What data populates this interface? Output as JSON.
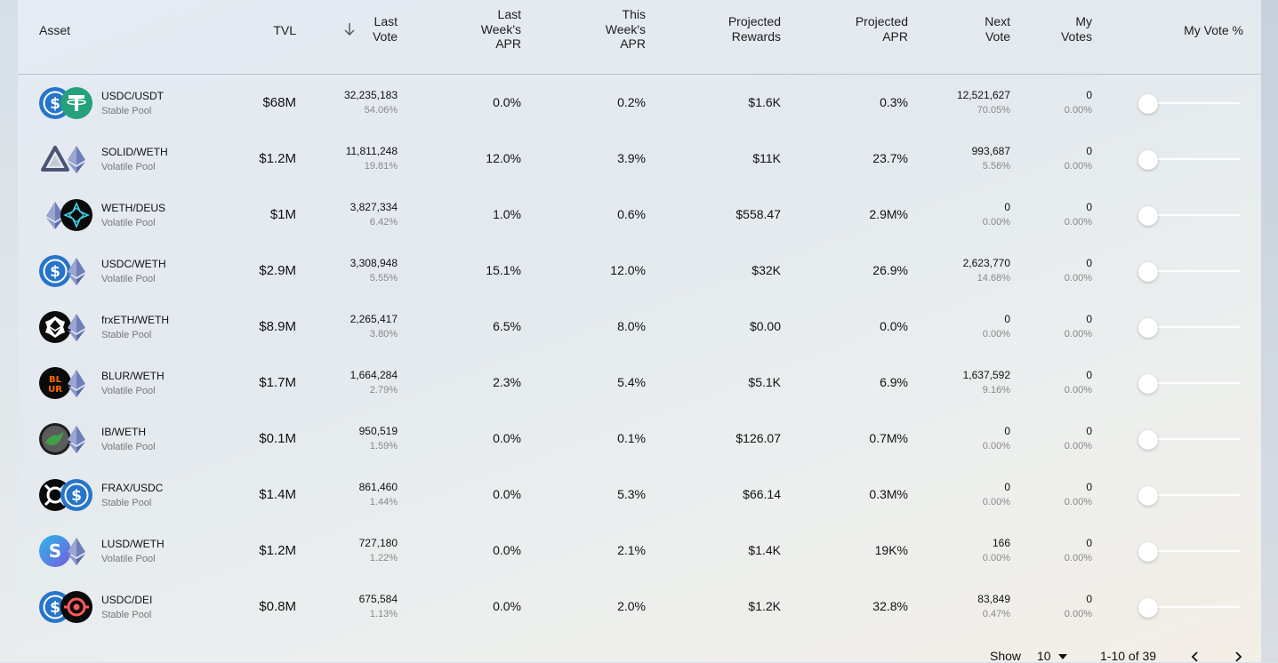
{
  "header": {
    "asset": "Asset",
    "tvl": "TVL",
    "last_vote": [
      "Last",
      "Vote"
    ],
    "last_week_apr": [
      "Last",
      "Week's",
      "APR"
    ],
    "this_week_apr": [
      "This",
      "Week's",
      "APR"
    ],
    "projected_rewards": [
      "Projected",
      "Rewards"
    ],
    "projected_apr": [
      "Projected",
      "APR"
    ],
    "next_vote": [
      "Next",
      "Vote"
    ],
    "my_votes": [
      "My",
      "Votes"
    ],
    "my_vote_pct": "My Vote %"
  },
  "rows": [
    {
      "name": "USDC/USDT",
      "type": "Stable Pool",
      "tvl": "$68M",
      "last_vote": "32,235,183",
      "last_vote_pct": "54.06%",
      "last_week_apr": "0.0%",
      "this_week_apr": "0.2%",
      "projected_rewards": "$1.6K",
      "projected_apr": "0.3%",
      "next_vote": "12,521,627",
      "next_vote_pct": "70.05%",
      "my_votes": "0",
      "my_votes_pct": "0.00%",
      "icons": [
        "usdc-icon",
        "usdt-icon"
      ],
      "slider": 0
    },
    {
      "name": "SOLID/WETH",
      "type": "Volatile Pool",
      "tvl": "$1.2M",
      "last_vote": "11,811,248",
      "last_vote_pct": "19.81%",
      "last_week_apr": "12.0%",
      "this_week_apr": "3.9%",
      "projected_rewards": "$11K",
      "projected_apr": "23.7%",
      "next_vote": "993,687",
      "next_vote_pct": "5.56%",
      "my_votes": "0",
      "my_votes_pct": "0.00%",
      "icons": [
        "solid-icon",
        "weth-icon"
      ],
      "slider": 0
    },
    {
      "name": "WETH/DEUS",
      "type": "Volatile Pool",
      "tvl": "$1M",
      "last_vote": "3,827,334",
      "last_vote_pct": "6.42%",
      "last_week_apr": "1.0%",
      "this_week_apr": "0.6%",
      "projected_rewards": "$558.47",
      "projected_apr": "2.9M%",
      "next_vote": "0",
      "next_vote_pct": "0.00%",
      "my_votes": "0",
      "my_votes_pct": "0.00%",
      "icons": [
        "weth-icon",
        "deus-icon"
      ],
      "slider": 0
    },
    {
      "name": "USDC/WETH",
      "type": "Volatile Pool",
      "tvl": "$2.9M",
      "last_vote": "3,308,948",
      "last_vote_pct": "5.55%",
      "last_week_apr": "15.1%",
      "this_week_apr": "12.0%",
      "projected_rewards": "$32K",
      "projected_apr": "26.9%",
      "next_vote": "2,623,770",
      "next_vote_pct": "14.68%",
      "my_votes": "0",
      "my_votes_pct": "0.00%",
      "icons": [
        "usdc-icon",
        "weth-icon"
      ],
      "slider": 0
    },
    {
      "name": "frxETH/WETH",
      "type": "Stable Pool",
      "tvl": "$8.9M",
      "last_vote": "2,265,417",
      "last_vote_pct": "3.80%",
      "last_week_apr": "6.5%",
      "this_week_apr": "8.0%",
      "projected_rewards": "$0.00",
      "projected_apr": "0.0%",
      "next_vote": "0",
      "next_vote_pct": "0.00%",
      "my_votes": "0",
      "my_votes_pct": "0.00%",
      "icons": [
        "frxeth-icon",
        "weth-icon"
      ],
      "slider": 0
    },
    {
      "name": "BLUR/WETH",
      "type": "Volatile Pool",
      "tvl": "$1.7M",
      "last_vote": "1,664,284",
      "last_vote_pct": "2.79%",
      "last_week_apr": "2.3%",
      "this_week_apr": "5.4%",
      "projected_rewards": "$5.1K",
      "projected_apr": "6.9%",
      "next_vote": "1,637,592",
      "next_vote_pct": "9.16%",
      "my_votes": "0",
      "my_votes_pct": "0.00%",
      "icons": [
        "blur-icon",
        "weth-icon"
      ],
      "slider": 0
    },
    {
      "name": "IB/WETH",
      "type": "Volatile Pool",
      "tvl": "$0.1M",
      "last_vote": "950,519",
      "last_vote_pct": "1.59%",
      "last_week_apr": "0.0%",
      "this_week_apr": "0.1%",
      "projected_rewards": "$126.07",
      "projected_apr": "0.7M%",
      "next_vote": "0",
      "next_vote_pct": "0.00%",
      "my_votes": "0",
      "my_votes_pct": "0.00%",
      "icons": [
        "ib-icon",
        "weth-icon"
      ],
      "slider": 0
    },
    {
      "name": "FRAX/USDC",
      "type": "Stable Pool",
      "tvl": "$1.4M",
      "last_vote": "861,460",
      "last_vote_pct": "1.44%",
      "last_week_apr": "0.0%",
      "this_week_apr": "5.3%",
      "projected_rewards": "$66.14",
      "projected_apr": "0.3M%",
      "next_vote": "0",
      "next_vote_pct": "0.00%",
      "my_votes": "0",
      "my_votes_pct": "0.00%",
      "icons": [
        "frax-icon",
        "usdc-icon"
      ],
      "slider": 0
    },
    {
      "name": "LUSD/WETH",
      "type": "Volatile Pool",
      "tvl": "$1.2M",
      "last_vote": "727,180",
      "last_vote_pct": "1.22%",
      "last_week_apr": "0.0%",
      "this_week_apr": "2.1%",
      "projected_rewards": "$1.4K",
      "projected_apr": "19K%",
      "next_vote": "166",
      "next_vote_pct": "0.00%",
      "my_votes": "0",
      "my_votes_pct": "0.00%",
      "icons": [
        "lusd-icon",
        "weth-icon"
      ],
      "slider": 0
    },
    {
      "name": "USDC/DEI",
      "type": "Stable Pool",
      "tvl": "$0.8M",
      "last_vote": "675,584",
      "last_vote_pct": "1.13%",
      "last_week_apr": "0.0%",
      "this_week_apr": "2.0%",
      "projected_rewards": "$1.2K",
      "projected_apr": "32.8%",
      "next_vote": "83,849",
      "next_vote_pct": "0.47%",
      "my_votes": "0",
      "my_votes_pct": "0.00%",
      "icons": [
        "usdc-icon",
        "dei-icon"
      ],
      "slider": 0
    }
  ],
  "footer": {
    "show_label": "Show",
    "page_size": "10",
    "range": "1-10 of 39"
  },
  "colors": {
    "usdc": "#2775ca",
    "usdt": "#26a17b",
    "weth": "#6b7bb8",
    "blur": "#ff6b00"
  }
}
